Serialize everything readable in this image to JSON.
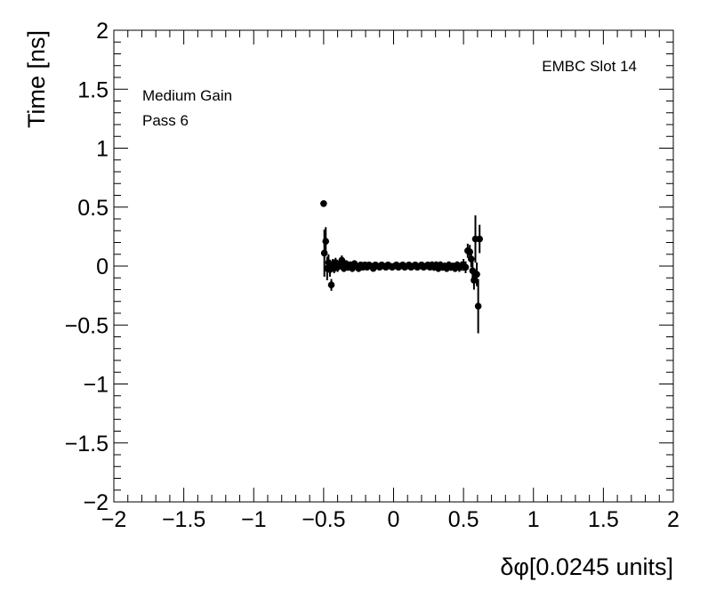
{
  "chart_data": {
    "type": "scatter",
    "title": "",
    "xlabel": "δφ[0.0245 units]",
    "ylabel": "Time [ns]",
    "xlim": [
      -2,
      2
    ],
    "ylim": [
      -2,
      2
    ],
    "x_ticks": [
      -2,
      -1.5,
      -1,
      -0.5,
      0,
      0.5,
      1,
      1.5,
      2
    ],
    "x_tick_labels": [
      "−2",
      "−1.5",
      "−1",
      "−0.5",
      "0",
      "0.5",
      "1",
      "1.5",
      "2"
    ],
    "y_ticks": [
      -2,
      -1.5,
      -1,
      -0.5,
      0,
      0.5,
      1,
      1.5,
      2
    ],
    "y_tick_labels": [
      "−2",
      "−1.5",
      "−1",
      "−0.5",
      "0",
      "0.5",
      "1",
      "1.5",
      "2"
    ],
    "grid": false,
    "annotations": [
      "EMBC Slot 14",
      "Medium Gain",
      "Pass 6"
    ],
    "series": [
      {
        "marker": "filled-circle",
        "color": "#000000",
        "points": [
          {
            "x": -0.5,
            "y": 0.53,
            "err": 0.0
          },
          {
            "x": -0.495,
            "y": 0.11,
            "err": 0.2
          },
          {
            "x": -0.485,
            "y": 0.21,
            "err": 0.12
          },
          {
            "x": -0.475,
            "y": -0.02,
            "err": 0.1
          },
          {
            "x": -0.465,
            "y": 0.03,
            "err": 0.07
          },
          {
            "x": -0.455,
            "y": -0.03,
            "err": 0.06
          },
          {
            "x": -0.445,
            "y": -0.16,
            "err": 0.05
          },
          {
            "x": -0.435,
            "y": 0.01,
            "err": 0.05
          },
          {
            "x": -0.425,
            "y": -0.02,
            "err": 0.04
          },
          {
            "x": -0.415,
            "y": 0.03,
            "err": 0.04
          },
          {
            "x": -0.4,
            "y": -0.01,
            "err": 0.04
          },
          {
            "x": -0.385,
            "y": 0.02,
            "err": 0.03
          },
          {
            "x": -0.37,
            "y": 0.05,
            "err": 0.04
          },
          {
            "x": -0.355,
            "y": -0.02,
            "err": 0.03
          },
          {
            "x": -0.34,
            "y": 0.02,
            "err": 0.03
          },
          {
            "x": -0.325,
            "y": -0.01,
            "err": 0.03
          },
          {
            "x": -0.31,
            "y": 0.01,
            "err": 0.03
          },
          {
            "x": -0.295,
            "y": -0.02,
            "err": 0.03
          },
          {
            "x": -0.28,
            "y": 0.02,
            "err": 0.03
          },
          {
            "x": -0.265,
            "y": 0.0,
            "err": 0.02
          },
          {
            "x": -0.25,
            "y": -0.02,
            "err": 0.03
          },
          {
            "x": -0.235,
            "y": 0.01,
            "err": 0.02
          },
          {
            "x": -0.22,
            "y": -0.01,
            "err": 0.02
          },
          {
            "x": -0.205,
            "y": 0.01,
            "err": 0.02
          },
          {
            "x": -0.19,
            "y": -0.01,
            "err": 0.02
          },
          {
            "x": -0.175,
            "y": 0.01,
            "err": 0.02
          },
          {
            "x": -0.16,
            "y": 0.0,
            "err": 0.02
          },
          {
            "x": -0.145,
            "y": -0.02,
            "err": 0.02
          },
          {
            "x": -0.13,
            "y": 0.01,
            "err": 0.02
          },
          {
            "x": -0.115,
            "y": 0.0,
            "err": 0.02
          },
          {
            "x": -0.1,
            "y": -0.01,
            "err": 0.02
          },
          {
            "x": -0.085,
            "y": 0.01,
            "err": 0.02
          },
          {
            "x": -0.07,
            "y": 0.0,
            "err": 0.02
          },
          {
            "x": -0.055,
            "y": -0.01,
            "err": 0.02
          },
          {
            "x": -0.04,
            "y": 0.01,
            "err": 0.02
          },
          {
            "x": -0.025,
            "y": 0.0,
            "err": 0.02
          },
          {
            "x": -0.01,
            "y": -0.01,
            "err": 0.02
          },
          {
            "x": 0.005,
            "y": 0.0,
            "err": 0.02
          },
          {
            "x": 0.02,
            "y": 0.01,
            "err": 0.02
          },
          {
            "x": 0.035,
            "y": -0.01,
            "err": 0.02
          },
          {
            "x": 0.05,
            "y": 0.0,
            "err": 0.02
          },
          {
            "x": 0.065,
            "y": 0.01,
            "err": 0.02
          },
          {
            "x": 0.08,
            "y": -0.01,
            "err": 0.02
          },
          {
            "x": 0.095,
            "y": 0.0,
            "err": 0.02
          },
          {
            "x": 0.11,
            "y": 0.01,
            "err": 0.02
          },
          {
            "x": 0.125,
            "y": -0.01,
            "err": 0.02
          },
          {
            "x": 0.14,
            "y": 0.0,
            "err": 0.02
          },
          {
            "x": 0.155,
            "y": 0.01,
            "err": 0.02
          },
          {
            "x": 0.17,
            "y": -0.01,
            "err": 0.02
          },
          {
            "x": 0.185,
            "y": 0.0,
            "err": 0.02
          },
          {
            "x": 0.2,
            "y": 0.01,
            "err": 0.02
          },
          {
            "x": 0.215,
            "y": -0.01,
            "err": 0.02
          },
          {
            "x": 0.23,
            "y": 0.0,
            "err": 0.02
          },
          {
            "x": 0.245,
            "y": 0.01,
            "err": 0.02
          },
          {
            "x": 0.26,
            "y": -0.01,
            "err": 0.02
          },
          {
            "x": 0.275,
            "y": 0.01,
            "err": 0.03
          },
          {
            "x": 0.29,
            "y": -0.01,
            "err": 0.03
          },
          {
            "x": 0.305,
            "y": 0.01,
            "err": 0.03
          },
          {
            "x": 0.32,
            "y": -0.02,
            "err": 0.03
          },
          {
            "x": 0.335,
            "y": 0.01,
            "err": 0.03
          },
          {
            "x": 0.35,
            "y": -0.01,
            "err": 0.03
          },
          {
            "x": 0.365,
            "y": 0.0,
            "err": 0.03
          },
          {
            "x": 0.38,
            "y": -0.02,
            "err": 0.03
          },
          {
            "x": 0.395,
            "y": 0.01,
            "err": 0.03
          },
          {
            "x": 0.41,
            "y": -0.01,
            "err": 0.03
          },
          {
            "x": 0.425,
            "y": 0.0,
            "err": 0.03
          },
          {
            "x": 0.44,
            "y": -0.02,
            "err": 0.03
          },
          {
            "x": 0.455,
            "y": 0.01,
            "err": 0.03
          },
          {
            "x": 0.47,
            "y": -0.01,
            "err": 0.04
          },
          {
            "x": 0.485,
            "y": 0.0,
            "err": 0.04
          },
          {
            "x": 0.5,
            "y": 0.01,
            "err": 0.05
          },
          {
            "x": 0.515,
            "y": -0.01,
            "err": 0.05
          },
          {
            "x": 0.53,
            "y": 0.13,
            "err": 0.06
          },
          {
            "x": 0.545,
            "y": 0.12,
            "err": 0.06
          },
          {
            "x": 0.555,
            "y": 0.06,
            "err": 0.07
          },
          {
            "x": 0.565,
            "y": -0.04,
            "err": 0.08
          },
          {
            "x": 0.575,
            "y": -0.12,
            "err": 0.08
          },
          {
            "x": 0.585,
            "y": 0.23,
            "err": 0.2
          },
          {
            "x": 0.595,
            "y": -0.07,
            "err": 0.1
          },
          {
            "x": 0.605,
            "y": -0.34,
            "err": 0.23
          },
          {
            "x": 0.615,
            "y": 0.23,
            "err": 0.12
          }
        ]
      }
    ]
  }
}
